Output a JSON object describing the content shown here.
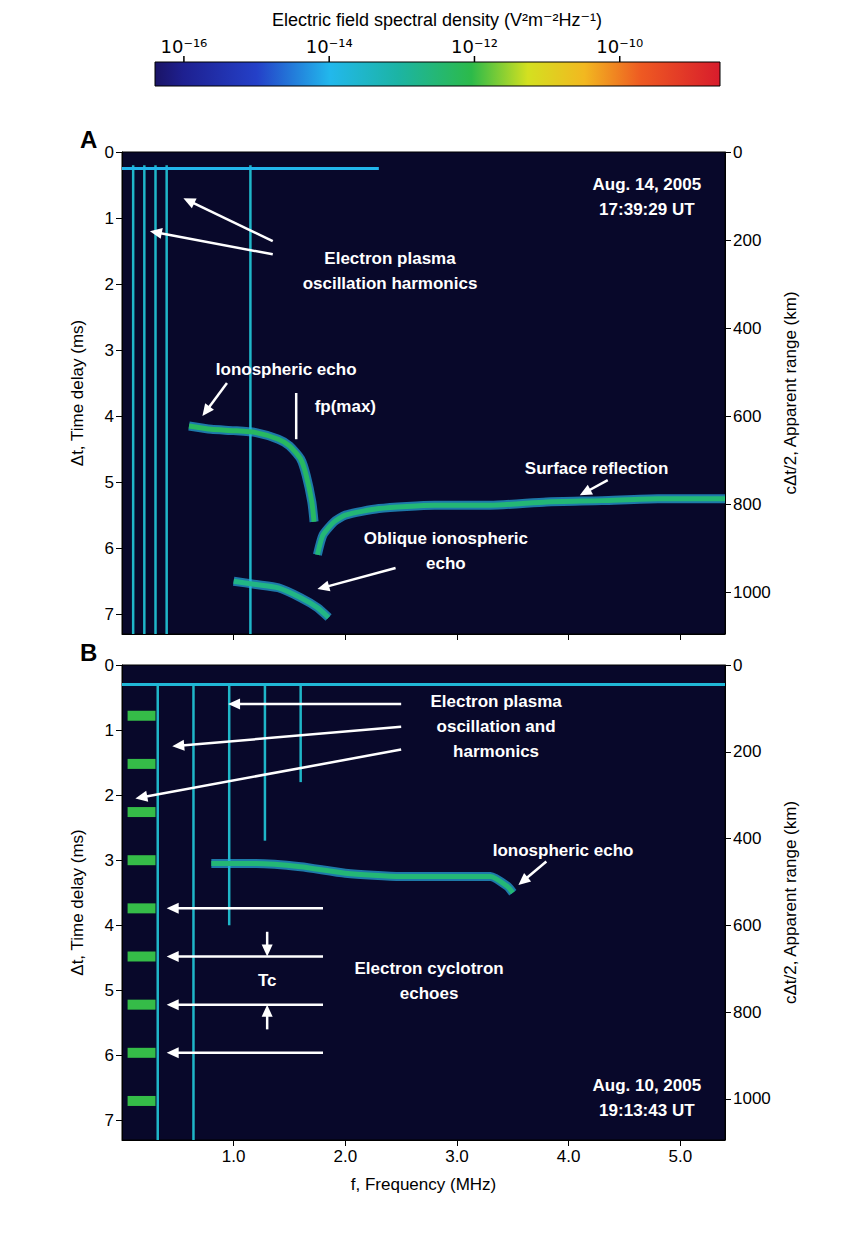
{
  "chart_data": [
    {
      "type": "colorbar",
      "title": "Electric field spectral density (V²m⁻²Hz⁻¹)",
      "log": true,
      "range": [
        4e-17,
        2.4e-09
      ],
      "ticks": [
        {
          "value": 1e-16,
          "label": "10⁻¹⁶"
        },
        {
          "value": 1e-14,
          "label": "10⁻¹⁴"
        },
        {
          "value": 1e-12,
          "label": "10⁻¹²"
        },
        {
          "value": 1e-10,
          "label": "10⁻¹⁰"
        }
      ]
    },
    {
      "type": "spectrogram",
      "panel": "A",
      "xlim": [
        0,
        5.4
      ],
      "xticks": [
        {
          "value": 1,
          "label": "1.0"
        },
        {
          "value": 2,
          "label": "2.0"
        },
        {
          "value": 3,
          "label": "3.0"
        },
        {
          "value": 4,
          "label": "4.0"
        },
        {
          "value": 5,
          "label": "5.0"
        }
      ],
      "ylim": [
        0,
        7.3
      ],
      "yticks": [
        0,
        1,
        2,
        3,
        4,
        5,
        6,
        7
      ],
      "y2lim": [
        0,
        1095
      ],
      "y2ticks": [
        0,
        200,
        400,
        600,
        800,
        1000
      ],
      "ylabel": "Δt, Time delay (ms)",
      "y2label": "cΔt/2, Apparent range (km)",
      "tick_labels": "y",
      "grid": false,
      "series": [
        {
          "type": "line",
          "density": 1e-14,
          "x": [
            0.0,
            2.3
          ],
          "y": [
            0.25,
            0.25
          ]
        },
        {
          "type": "segments",
          "density": 3e-14,
          "x_start": [
            0.1,
            0.2,
            0.3,
            0.4,
            1.15
          ],
          "x_end": [
            0.1,
            0.2,
            0.3,
            0.4,
            1.15
          ],
          "y_start": [
            0.2,
            0.2,
            0.2,
            0.2,
            0.2
          ],
          "y_end": [
            7.3,
            7.3,
            7.3,
            7.3,
            7.3
          ]
        },
        {
          "type": "line",
          "density": 5e-13,
          "x": [
            0.6,
            0.8,
            1.0,
            1.2,
            1.4,
            1.5,
            1.6,
            1.65,
            1.7,
            1.72
          ],
          "y": [
            4.15,
            4.2,
            4.22,
            4.25,
            4.35,
            4.45,
            4.65,
            4.9,
            5.3,
            5.6
          ]
        },
        {
          "type": "line",
          "density": 3e-13,
          "x": [
            1.75,
            1.8,
            1.9,
            2.0,
            2.3,
            2.8,
            3.3,
            3.8,
            4.3,
            4.8,
            5.4
          ],
          "y": [
            6.1,
            5.8,
            5.6,
            5.5,
            5.4,
            5.35,
            5.35,
            5.3,
            5.28,
            5.25,
            5.25
          ]
        },
        {
          "type": "line",
          "density": 2e-13,
          "x": [
            1.0,
            1.2,
            1.4,
            1.6,
            1.75,
            1.85
          ],
          "y": [
            6.5,
            6.55,
            6.6,
            6.75,
            6.9,
            7.05
          ]
        }
      ],
      "annotations": [
        {
          "text": "Electron plasma\noscillation harmonics",
          "x": 2.4,
          "y": 1.8,
          "arrows": [
            [
              1.35,
              1.35,
              0.55,
              0.7
            ],
            [
              1.35,
              1.55,
              0.25,
              1.2
            ]
          ]
        },
        {
          "text": "Ionospheric echo",
          "x": 1.47,
          "y": 3.3,
          "arrows": [
            [
              0.94,
              3.5,
              0.72,
              4.0
            ]
          ]
        },
        {
          "text": "fp(max)",
          "x": 2.0,
          "y": 3.85,
          "lines": [
            [
              1.56,
              3.65,
              1.56,
              4.35
            ]
          ]
        },
        {
          "text": "Surface reflection",
          "x": 4.25,
          "y": 4.8,
          "arrows": [
            [
              4.35,
              4.97,
              4.1,
              5.2
            ]
          ]
        },
        {
          "text": "Oblique ionospheric\necho",
          "x": 2.9,
          "y": 6.05,
          "arrows": [
            [
              2.45,
              6.3,
              1.75,
              6.62
            ]
          ]
        },
        {
          "text": "Aug. 14, 2005\n17:39:29 UT",
          "x": 4.7,
          "y": 0.68
        }
      ]
    },
    {
      "type": "spectrogram",
      "panel": "B",
      "xlim": [
        0,
        5.4
      ],
      "xticks": [
        {
          "value": 1,
          "label": "1.0"
        },
        {
          "value": 2,
          "label": "2.0"
        },
        {
          "value": 3,
          "label": "3.0"
        },
        {
          "value": 4,
          "label": "4.0"
        },
        {
          "value": 5,
          "label": "5.0"
        }
      ],
      "ylim": [
        0,
        7.3
      ],
      "yticks": [
        0,
        1,
        2,
        3,
        4,
        5,
        6,
        7
      ],
      "y2lim": [
        0,
        1095
      ],
      "y2ticks": [
        0,
        200,
        400,
        600,
        800,
        1000
      ],
      "xlabel": "f, Frequency (MHz)",
      "ylabel": "Δt, Time delay (ms)",
      "y2label": "cΔt/2, Apparent range (km)",
      "grid": false,
      "series": [
        {
          "type": "line",
          "density": 2e-14,
          "x": [
            0.0,
            5.4
          ],
          "y": [
            0.3,
            0.3
          ]
        },
        {
          "type": "segments",
          "density": 3e-14,
          "x_start": [
            0.32,
            0.64,
            0.96,
            1.28,
            1.6
          ],
          "x_end": [
            0.32,
            0.64,
            0.96,
            1.28,
            1.6
          ],
          "y_start": [
            0.3,
            0.3,
            0.3,
            0.3,
            0.3
          ],
          "y_end": [
            7.3,
            7.3,
            4.0,
            2.7,
            1.8
          ]
        },
        {
          "type": "segments",
          "density": 1e-12,
          "x_start": [
            0.05,
            0.05,
            0.05,
            0.05,
            0.05,
            0.05,
            0.05,
            0.05,
            0.05
          ],
          "x_end": [
            0.3,
            0.3,
            0.3,
            0.3,
            0.3,
            0.3,
            0.3,
            0.3,
            0.3
          ],
          "y_start": [
            0.78,
            1.52,
            2.26,
            3.0,
            3.74,
            4.48,
            5.22,
            5.96,
            6.7
          ],
          "y_end": [
            0.78,
            1.52,
            2.26,
            3.0,
            3.74,
            4.48,
            5.22,
            5.96,
            6.7
          ]
        },
        {
          "type": "line",
          "density": 3e-13,
          "x": [
            0.8,
            1.2,
            1.6,
            2.0,
            2.5,
            3.0,
            3.3,
            3.45,
            3.5
          ],
          "y": [
            3.05,
            3.05,
            3.1,
            3.2,
            3.25,
            3.25,
            3.25,
            3.4,
            3.5
          ]
        }
      ],
      "annotations": [
        {
          "text": "Electron plasma\noscillation and\nharmonics",
          "x": 3.35,
          "y": 0.95,
          "arrows": [
            [
              2.5,
              0.6,
              0.95,
              0.6
            ],
            [
              2.5,
              0.95,
              0.45,
              1.25
            ],
            [
              2.5,
              1.3,
              0.12,
              2.05
            ]
          ]
        },
        {
          "text": "Ionospheric echo",
          "x": 3.95,
          "y": 2.85,
          "arrows": [
            [
              3.8,
              3.02,
              3.55,
              3.38
            ]
          ]
        },
        {
          "text": "Electron cyclotron\nechoes",
          "x": 2.75,
          "y": 4.85,
          "arrows": [
            [
              1.8,
              3.74,
              0.4,
              3.74
            ],
            [
              1.8,
              4.48,
              0.4,
              4.48
            ],
            [
              1.8,
              5.22,
              0.4,
              5.22
            ],
            [
              1.8,
              5.96,
              0.4,
              5.96
            ]
          ]
        },
        {
          "text": "Tc",
          "x": 1.3,
          "y": 4.85,
          "arrows": [
            [
              1.3,
              4.1,
              1.3,
              4.48
            ],
            [
              1.3,
              5.6,
              1.3,
              5.22
            ]
          ]
        },
        {
          "text": "Aug. 10, 2005\n19:13:43 UT",
          "x": 4.7,
          "y": 6.65
        }
      ]
    }
  ]
}
